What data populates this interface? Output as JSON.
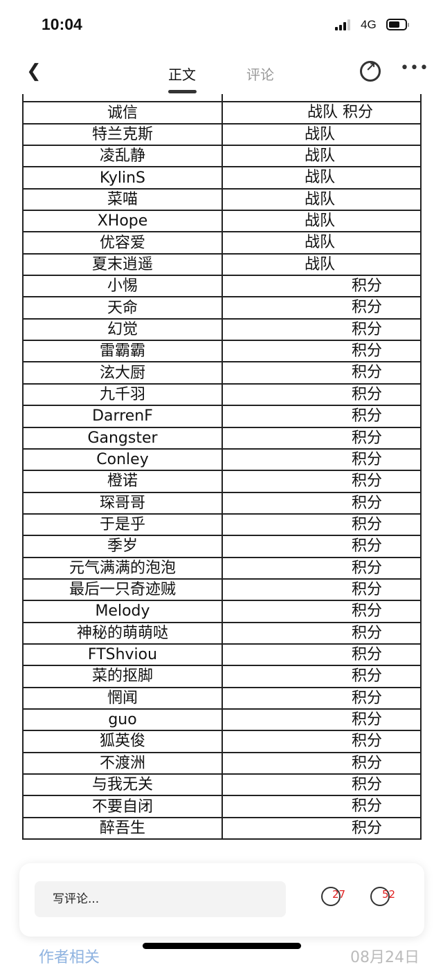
{
  "status": {
    "time": "10:04",
    "network": "4G"
  },
  "nav": {
    "tabs": [
      {
        "label": "正文",
        "active": true
      },
      {
        "label": "评论",
        "active": false
      }
    ]
  },
  "rows": [
    {
      "name": "诚信",
      "value": "战队 积分"
    },
    {
      "name": "特兰克斯",
      "value": "战队"
    },
    {
      "name": "凌乱静",
      "value": "战队"
    },
    {
      "name": "KylinS",
      "value": "战队"
    },
    {
      "name": "菜喵",
      "value": "战队"
    },
    {
      "name": "XHope",
      "value": "战队"
    },
    {
      "name": "优容爱",
      "value": "战队"
    },
    {
      "name": "夏末逍遥",
      "value": "战队"
    },
    {
      "name": "小惕",
      "value": "积分"
    },
    {
      "name": "天命",
      "value": "积分"
    },
    {
      "name": "幻觉",
      "value": "积分"
    },
    {
      "name": "雷霸霸",
      "value": "积分"
    },
    {
      "name": "泫大厨",
      "value": "积分"
    },
    {
      "name": "九千羽",
      "value": "积分"
    },
    {
      "name": "DarrenF",
      "value": "积分"
    },
    {
      "name": "Gangster",
      "value": "积分"
    },
    {
      "name": "Conley",
      "value": "积分"
    },
    {
      "name": "橙诺",
      "value": "积分"
    },
    {
      "name": "琛哥哥",
      "value": "积分"
    },
    {
      "name": "于是乎",
      "value": "积分"
    },
    {
      "name": "季岁",
      "value": "积分"
    },
    {
      "name": "元气满满的泡泡",
      "value": "积分"
    },
    {
      "name": "最后一只奇迹贼",
      "value": "积分"
    },
    {
      "name": "Melody",
      "value": "积分"
    },
    {
      "name": "神秘的萌萌哒",
      "value": "积分"
    },
    {
      "name": "FTShviou",
      "value": "积分"
    },
    {
      "name": "菜的抠脚",
      "value": "积分"
    },
    {
      "name": "惘闻",
      "value": "积分"
    },
    {
      "name": "guo",
      "value": "积分"
    },
    {
      "name": "狐英俊",
      "value": "积分"
    },
    {
      "name": "不渡洲",
      "value": "积分"
    },
    {
      "name": "与我无关",
      "value": "积分"
    },
    {
      "name": "不要自闭",
      "value": "积分"
    },
    {
      "name": "醉吾生",
      "value": "积分"
    }
  ],
  "bottom_bar": {
    "comment_placeholder": "写评论...",
    "likes": "27",
    "comments": "52",
    "accent": "#e02020"
  },
  "footer": {
    "author_link": "作者相关",
    "date": "08月24日"
  }
}
